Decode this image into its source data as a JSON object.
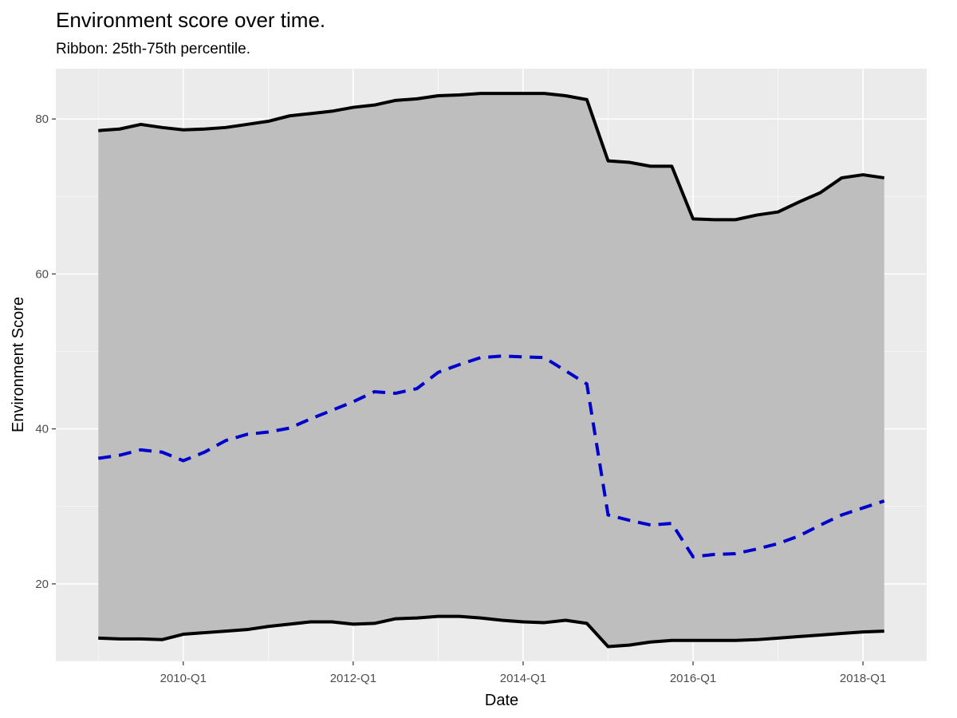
{
  "chart_data": {
    "type": "line",
    "title": "Environment score over time.",
    "subtitle": "Ribbon: 25th-75th percentile.",
    "xlabel": "Date",
    "ylabel": "Environment Score",
    "x_ticks": [
      "2010-Q1",
      "2012-Q1",
      "2014-Q1",
      "2016-Q1",
      "2018-Q1"
    ],
    "y_ticks": [
      20,
      40,
      60,
      80
    ],
    "xlim": [
      "2008-Q3",
      "2018-Q4"
    ],
    "ylim": [
      10,
      86.5
    ],
    "grid": true,
    "x": [
      "2009-Q1",
      "2009-Q2",
      "2009-Q3",
      "2009-Q4",
      "2010-Q1",
      "2010-Q2",
      "2010-Q3",
      "2010-Q4",
      "2011-Q1",
      "2011-Q2",
      "2011-Q3",
      "2011-Q4",
      "2012-Q1",
      "2012-Q2",
      "2012-Q3",
      "2012-Q4",
      "2013-Q1",
      "2013-Q2",
      "2013-Q3",
      "2013-Q4",
      "2014-Q1",
      "2014-Q2",
      "2014-Q3",
      "2014-Q4",
      "2015-Q1",
      "2015-Q2",
      "2015-Q3",
      "2015-Q4",
      "2016-Q1",
      "2016-Q2",
      "2016-Q3",
      "2016-Q4",
      "2017-Q1",
      "2017-Q2",
      "2017-Q3",
      "2017-Q4",
      "2018-Q1",
      "2018-Q2"
    ],
    "series": [
      {
        "role": "ribbon_upper",
        "color": "#000000",
        "line": "solid",
        "values": [
          78.5,
          78.7,
          79.3,
          78.9,
          78.6,
          78.7,
          78.9,
          79.3,
          79.7,
          80.4,
          80.7,
          81.0,
          81.5,
          81.8,
          82.4,
          82.6,
          83.0,
          83.1,
          83.3,
          83.3,
          83.3,
          83.3,
          83.0,
          82.5,
          74.6,
          74.4,
          73.9,
          73.9,
          67.1,
          67.0,
          67.0,
          67.6,
          68.0,
          69.3,
          70.5,
          72.4,
          72.8,
          72.4
        ]
      },
      {
        "role": "median",
        "color": "#0000cc",
        "line": "dashed",
        "values": [
          36.2,
          36.6,
          37.3,
          37.0,
          35.9,
          37.0,
          38.5,
          39.3,
          39.6,
          40.1,
          41.3,
          42.4,
          43.5,
          44.8,
          44.6,
          45.2,
          47.3,
          48.3,
          49.2,
          49.4,
          49.3,
          49.2,
          47.5,
          45.8,
          28.9,
          28.2,
          27.6,
          27.8,
          23.5,
          23.8,
          23.9,
          24.5,
          25.2,
          26.2,
          27.6,
          28.9,
          29.8,
          30.7
        ]
      },
      {
        "role": "ribbon_lower",
        "color": "#000000",
        "line": "solid",
        "values": [
          13.0,
          12.9,
          12.9,
          12.8,
          13.5,
          13.7,
          13.9,
          14.1,
          14.5,
          14.8,
          15.1,
          15.1,
          14.8,
          14.9,
          15.5,
          15.6,
          15.8,
          15.8,
          15.6,
          15.3,
          15.1,
          15.0,
          15.3,
          14.9,
          11.9,
          12.1,
          12.5,
          12.7,
          12.7,
          12.7,
          12.7,
          12.8,
          13.0,
          13.2,
          13.4,
          13.6,
          13.8,
          13.9
        ]
      }
    ],
    "colors": {
      "panel_bg": "#ebebeb",
      "grid": "#ffffff",
      "ribbon_fill": "#bebebe",
      "bound_line": "#000000",
      "median_line": "#0000cc"
    }
  }
}
